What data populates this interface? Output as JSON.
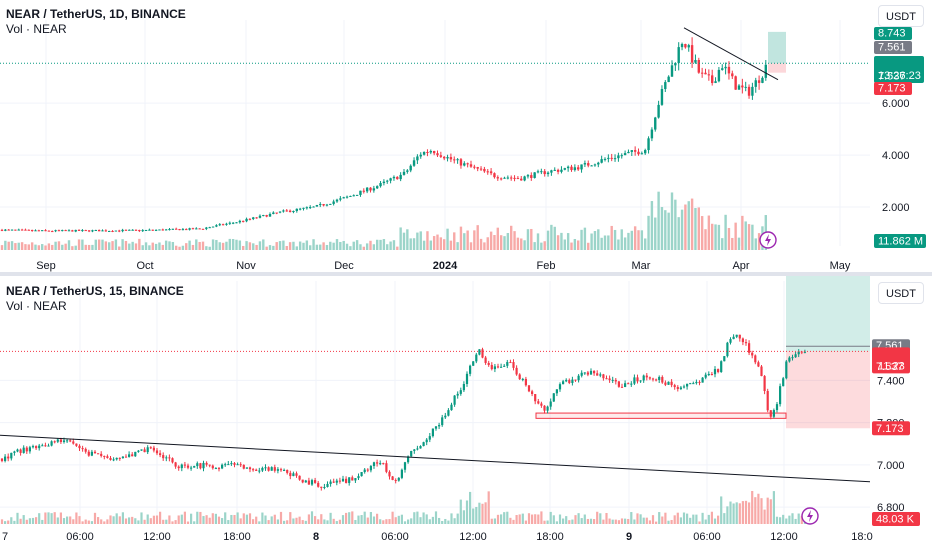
{
  "top": {
    "title": "NEAR / TetherUS, 1D, BINANCE",
    "vol_label": "Vol · NEAR",
    "currency_button": "USDT",
    "price_ticks": [
      "2.000",
      "4.000",
      "6.000"
    ],
    "time_ticks": [
      "Sep",
      "Oct",
      "Nov",
      "Dec",
      "2024",
      "Feb",
      "Mar",
      "Apr",
      "May"
    ],
    "price_tags": {
      "target": "8.743",
      "current": "7.561",
      "last": "7.537",
      "countdown": "13:26:23",
      "stop": "7.173",
      "volume": "11.862 M"
    },
    "chart_data": {
      "type": "candlestick",
      "ylim": [
        0.5,
        9.2
      ],
      "x_categories": [
        "Sep",
        "Oct",
        "Nov",
        "Dec",
        "2024",
        "Feb",
        "Mar",
        "Apr",
        "May"
      ],
      "close_profile": [
        [
          "Aug 25",
          1.12
        ],
        [
          "Sep 15",
          1.08
        ],
        [
          "Oct 10",
          1.1
        ],
        [
          "Oct 25",
          1.18
        ],
        [
          "Nov 10",
          1.5
        ],
        [
          "Nov 25",
          1.8
        ],
        [
          "Dec 5",
          2.0
        ],
        [
          "Dec 15",
          2.4
        ],
        [
          "Dec 25",
          2.9
        ],
        [
          "Dec 31",
          3.3
        ],
        [
          "Jan 3",
          4.1
        ],
        [
          "Jan 8",
          4.25
        ],
        [
          "Jan 15",
          3.9
        ],
        [
          "Jan 22",
          3.5
        ],
        [
          "Jan 30",
          3.2
        ],
        [
          "Feb 10",
          3.4
        ],
        [
          "Feb 20",
          3.6
        ],
        [
          "Feb 28",
          4.0
        ],
        [
          "Mar 5",
          4.2
        ],
        [
          "Mar 10",
          6.5
        ],
        [
          "Mar 14",
          8.5
        ],
        [
          "Mar 20",
          7.3
        ],
        [
          "Mar 25",
          6.8
        ],
        [
          "Apr 1",
          6.3
        ],
        [
          "Apr 5",
          6.5
        ],
        [
          "Apr 9",
          7.54
        ]
      ]
    }
  },
  "bottom": {
    "title": "NEAR / TetherUS, 15, BINANCE",
    "vol_label": "Vol · NEAR",
    "currency_button": "USDT",
    "price_ticks": [
      "6.800",
      "7.000",
      "7.200",
      "7.400"
    ],
    "time_ticks": [
      "7",
      "06:00",
      "12:00",
      "18:00",
      "8",
      "06:00",
      "12:00",
      "18:00",
      "9",
      "06:00",
      "12:00",
      "18:0"
    ],
    "price_tags": {
      "current": "7.561",
      "last": "7.537",
      "countdown": "11:23",
      "stop": "7.173",
      "volume": "48.03 K"
    },
    "chart_data": {
      "type": "candlestick",
      "ylim": [
        6.72,
        7.87
      ],
      "x_categories": [
        "7",
        "06:00",
        "12:00",
        "18:00",
        "8",
        "06:00",
        "12:00",
        "18:00",
        "9",
        "06:00",
        "12:00",
        "18:0"
      ],
      "close_profile": [
        [
          "7 00:00",
          7.05
        ],
        [
          "7 06:00",
          7.1
        ],
        [
          "7 12:00",
          7.0
        ],
        [
          "7 18:00",
          7.0
        ],
        [
          "8 00:00",
          6.92
        ],
        [
          "8 03:00",
          6.9
        ],
        [
          "8 06:00",
          7.02
        ],
        [
          "8 09:00",
          7.2
        ],
        [
          "8 12:00",
          7.55
        ],
        [
          "8 15:00",
          7.46
        ],
        [
          "8 18:00",
          7.25
        ],
        [
          "8 21:00",
          7.42
        ],
        [
          "9 00:00",
          7.38
        ],
        [
          "9 03:00",
          7.4
        ],
        [
          "9 06:00",
          7.42
        ],
        [
          "9 08:00",
          7.6
        ],
        [
          "9 10:00",
          7.55
        ],
        [
          "9 11:00",
          7.22
        ],
        [
          "9 11:30",
          7.3
        ],
        [
          "9 12:30",
          7.54
        ]
      ]
    }
  }
}
